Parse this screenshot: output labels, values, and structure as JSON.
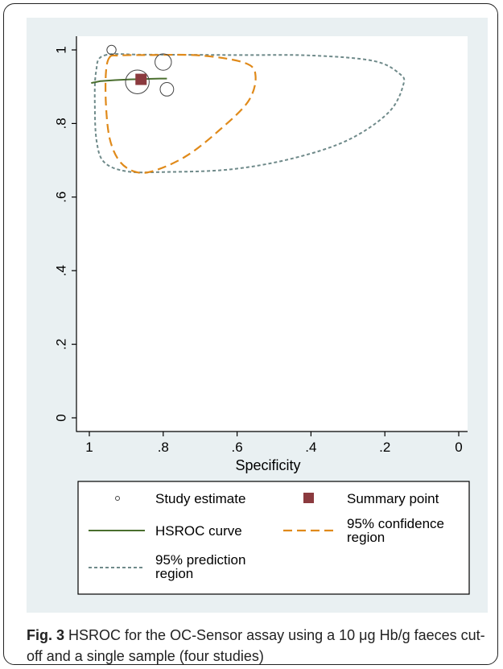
{
  "chart_data": {
    "type": "scatter",
    "xlabel": "Specificity",
    "x_reversed": true,
    "xlim": [
      0,
      1
    ],
    "ylim": [
      0,
      1
    ],
    "x_ticks": [
      {
        "value": 1,
        "label": "1"
      },
      {
        "value": 0.8,
        "label": ".8"
      },
      {
        "value": 0.6,
        "label": ".6"
      },
      {
        "value": 0.4,
        "label": ".4"
      },
      {
        "value": 0.2,
        "label": ".2"
      },
      {
        "value": 0,
        "label": "0"
      }
    ],
    "y_ticks": [
      {
        "value": 0,
        "label": "0"
      },
      {
        "value": 0.2,
        "label": ".2"
      },
      {
        "value": 0.4,
        "label": ".4"
      },
      {
        "value": 0.6,
        "label": ".6"
      },
      {
        "value": 0.8,
        "label": ".8"
      },
      {
        "value": 1,
        "label": "1"
      }
    ],
    "grid": false,
    "study_estimates": [
      {
        "specificity": 0.94,
        "sensitivity": 1.0,
        "weight": 0.3
      },
      {
        "specificity": 0.8,
        "sensitivity": 0.967,
        "weight": 0.8
      },
      {
        "specificity": 0.79,
        "sensitivity": 0.893,
        "weight": 0.6
      },
      {
        "specificity": 0.87,
        "sensitivity": 0.913,
        "weight": 1.3
      }
    ],
    "summary_point": {
      "specificity": 0.86,
      "sensitivity": 0.92
    },
    "hsroc_curve": [
      [
        0.995,
        0.91
      ],
      [
        0.97,
        0.915
      ],
      [
        0.93,
        0.918
      ],
      [
        0.89,
        0.92
      ],
      [
        0.85,
        0.921
      ],
      [
        0.81,
        0.922
      ],
      [
        0.79,
        0.922
      ]
    ],
    "confidence_region": [
      [
        0.945,
        0.98
      ],
      [
        0.92,
        0.985
      ],
      [
        0.84,
        0.986
      ],
      [
        0.7,
        0.985
      ],
      [
        0.58,
        0.965
      ],
      [
        0.55,
        0.93
      ],
      [
        0.57,
        0.86
      ],
      [
        0.65,
        0.78
      ],
      [
        0.74,
        0.71
      ],
      [
        0.83,
        0.67
      ],
      [
        0.88,
        0.67
      ],
      [
        0.92,
        0.7
      ],
      [
        0.945,
        0.76
      ],
      [
        0.955,
        0.85
      ],
      [
        0.955,
        0.94
      ]
    ],
    "prediction_region": [
      [
        0.96,
        0.985
      ],
      [
        0.85,
        0.987
      ],
      [
        0.6,
        0.986
      ],
      [
        0.4,
        0.985
      ],
      [
        0.23,
        0.97
      ],
      [
        0.16,
        0.935
      ],
      [
        0.15,
        0.905
      ],
      [
        0.19,
        0.83
      ],
      [
        0.3,
        0.755
      ],
      [
        0.45,
        0.705
      ],
      [
        0.62,
        0.675
      ],
      [
        0.8,
        0.668
      ],
      [
        0.9,
        0.67
      ],
      [
        0.96,
        0.695
      ],
      [
        0.98,
        0.75
      ],
      [
        0.985,
        0.84
      ],
      [
        0.982,
        0.94
      ]
    ],
    "legend": {
      "placement": "bottom",
      "entries": [
        {
          "label": "Study estimate",
          "symbol": "small-circle"
        },
        {
          "label": "Summary point",
          "symbol": "square"
        },
        {
          "label": "HSROC curve",
          "symbol": "solid-line"
        },
        {
          "label": "95% confidence region",
          "lines": [
            "95% confidence",
            "region"
          ],
          "symbol": "dashed-line"
        },
        {
          "label": "95% prediction region",
          "lines": [
            "95% prediction",
            "region"
          ],
          "symbol": "dotted-line"
        }
      ]
    },
    "colors": {
      "panel_background": "#e9f0f2",
      "plot_background": "#ffffff",
      "axis": "#000000",
      "study_marker": "#444444",
      "summary_point": "#8b3a3e",
      "hsroc_curve": "#4a6e2e",
      "confidence_region": "#e08a1a",
      "prediction_region": "#6f8a8a"
    }
  },
  "caption": {
    "label": "Fig. 3",
    "text": "HSROC for the OC-Sensor assay using a 10 μg Hb/g faeces cut-off and a single sample (four studies)"
  }
}
